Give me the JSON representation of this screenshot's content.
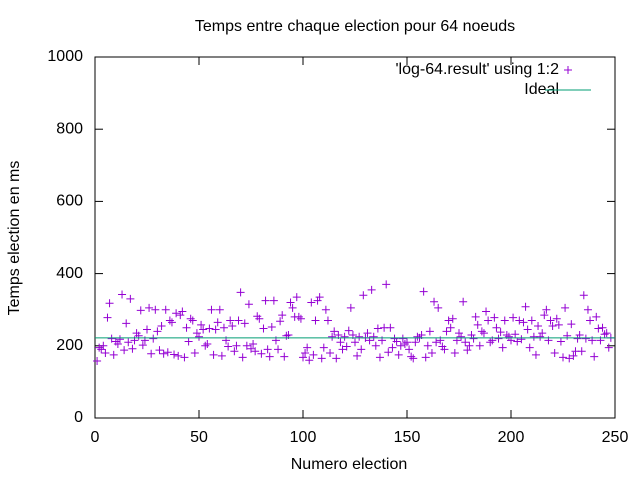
{
  "chart_data": {
    "type": "scatter",
    "title": "Temps entre chaque election pour 64 noeuds",
    "xlabel": "Numero election",
    "ylabel": "Temps election en ms",
    "xlim": [
      0,
      250
    ],
    "xticks": [
      0,
      50,
      100,
      150,
      200,
      250
    ],
    "ylim": [
      0,
      1000
    ],
    "yticks": [
      0,
      200,
      400,
      600,
      800,
      1000
    ],
    "legend": "top right",
    "series": [
      {
        "name": "'log-64.result' using 1:2",
        "color": "#9400d3",
        "mode": "points",
        "x": [
          1,
          2,
          3,
          4,
          5,
          6,
          7,
          8,
          9,
          10,
          11,
          12,
          13,
          14,
          15,
          16,
          17,
          18,
          19,
          20,
          21,
          22,
          23,
          24,
          25,
          26,
          27,
          28,
          29,
          30,
          31,
          32,
          33,
          34,
          35,
          36,
          37,
          38,
          39,
          40,
          41,
          42,
          43,
          44,
          45,
          46,
          47,
          48,
          49,
          50,
          51,
          52,
          53,
          54,
          55,
          56,
          57,
          58,
          59,
          60,
          61,
          62,
          63,
          64,
          65,
          66,
          67,
          68,
          69,
          70,
          71,
          72,
          73,
          74,
          75,
          76,
          77,
          78,
          79,
          80,
          81,
          82,
          83,
          84,
          85,
          86,
          87,
          88,
          89,
          90,
          91,
          92,
          93,
          94,
          95,
          96,
          97,
          98,
          99,
          100,
          101,
          102,
          103,
          104,
          105,
          106,
          107,
          108,
          109,
          110,
          111,
          112,
          113,
          114,
          115,
          116,
          117,
          118,
          119,
          120,
          121,
          122,
          123,
          124,
          125,
          126,
          127,
          128,
          129,
          130,
          131,
          132,
          133,
          134,
          135,
          136,
          137,
          138,
          139,
          140,
          141,
          142,
          143,
          144,
          145,
          146,
          147,
          148,
          149,
          150,
          151,
          152,
          153,
          154,
          155,
          156,
          157,
          158,
          159,
          160,
          161,
          162,
          163,
          164,
          165,
          166,
          167,
          168,
          169,
          170,
          171,
          172,
          173,
          174,
          175,
          176,
          177,
          178,
          179,
          180,
          181,
          182,
          183,
          184,
          185,
          186,
          187,
          188,
          189,
          190,
          191,
          192,
          193,
          194,
          195,
          196,
          197,
          198,
          199,
          200,
          201,
          202,
          203,
          204,
          205,
          206,
          207,
          208,
          209,
          210,
          211,
          212,
          213,
          214,
          215,
          216,
          217,
          218,
          219,
          220,
          221,
          222,
          223,
          224,
          225,
          226,
          227,
          228,
          229,
          230,
          231,
          232,
          233,
          234,
          235,
          236,
          237,
          238,
          239,
          240,
          241,
          242,
          243,
          244,
          245,
          246,
          247,
          248
        ],
        "values": [
          158,
          195,
          190,
          200,
          180,
          278,
          318,
          220,
          175,
          212,
          205,
          218,
          342,
          188,
          262,
          210,
          330,
          192,
          215,
          235,
          228,
          298,
          202,
          215,
          245,
          305,
          178,
          220,
          300,
          240,
          188,
          255,
          178,
          300,
          182,
          270,
          265,
          176,
          290,
          172,
          285,
          295,
          168,
          250,
          212,
          275,
          270,
          180,
          235,
          225,
          258,
          245,
          200,
          205,
          248,
          300,
          175,
          245,
          265,
          300,
          172,
          250,
          215,
          198,
          270,
          255,
          185,
          200,
          270,
          348,
          168,
          262,
          200,
          315,
          192,
          205,
          185,
          282,
          275,
          178,
          248,
          325,
          190,
          170,
          252,
          325,
          215,
          190,
          268,
          285,
          170,
          228,
          230,
          320,
          305,
          280,
          335,
          280,
          275,
          168,
          180,
          195,
          160,
          320,
          175,
          270,
          325,
          335,
          165,
          195,
          300,
          270,
          180,
          225,
          240,
          165,
          230,
          210,
          190,
          225,
          198,
          242,
          305,
          230,
          210,
          172,
          225,
          190,
          340,
          222,
          235,
          215,
          355,
          225,
          200,
          248,
          168,
          215,
          250,
          370,
          182,
          250,
          195,
          220,
          212,
          175,
          200,
          220,
          205,
          210,
          190,
          170,
          165,
          210,
          225,
          222,
          230,
          350,
          168,
          200,
          240,
          180,
          322,
          210,
          305,
          215,
          198,
          190,
          240,
          270,
          250,
          275,
          180,
          215,
          235,
          225,
          322,
          210,
          188,
          200,
          230,
          220,
          280,
          258,
          200,
          240,
          235,
          295,
          270,
          210,
          215,
          278,
          250,
          220,
          238,
          195,
          270,
          230,
          225,
          215,
          278,
          232,
          212,
          270,
          218,
          265,
          308,
          245,
          195,
          270,
          225,
          175,
          255,
          225,
          235,
          285,
          300,
          215,
          270,
          255,
          180,
          275,
          258,
          212,
          168,
          305,
          228,
          165,
          260,
          172,
          185,
          220,
          230,
          185,
          340,
          220,
          300,
          270,
          215,
          170,
          280,
          248,
          215,
          250,
          232,
          235,
          195,
          222
        ]
      },
      {
        "name": "Ideal",
        "color": "#009e73",
        "mode": "line",
        "x": [
          0,
          250
        ],
        "values": [
          222,
          222
        ]
      }
    ]
  }
}
